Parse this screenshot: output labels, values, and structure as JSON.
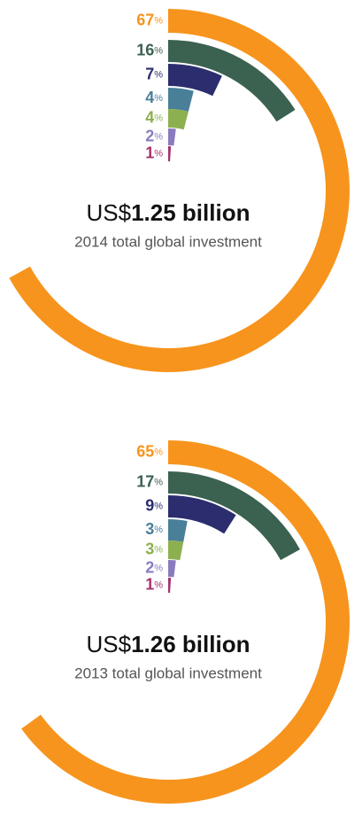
{
  "chart_data": [
    {
      "type": "radial-bar",
      "unit": "%",
      "currency": "US$",
      "title": "1.25 billion",
      "subtitle": "2014 total global investment",
      "values": [
        67,
        16,
        7,
        4,
        4,
        2,
        1
      ],
      "colors": [
        "#f7941d",
        "#3b6150",
        "#2b2d6e",
        "#4a7f9a",
        "#8db04f",
        "#8a7bbf",
        "#a6326e"
      ]
    },
    {
      "type": "radial-bar",
      "unit": "%",
      "currency": "US$",
      "title": "1.26 billion",
      "subtitle": "2013 total global investment",
      "values": [
        65,
        17,
        9,
        3,
        3,
        2,
        1
      ],
      "colors": [
        "#f7941d",
        "#3b6150",
        "#2b2d6e",
        "#4a7f9a",
        "#8db04f",
        "#8a7bbf",
        "#a6326e"
      ]
    }
  ]
}
